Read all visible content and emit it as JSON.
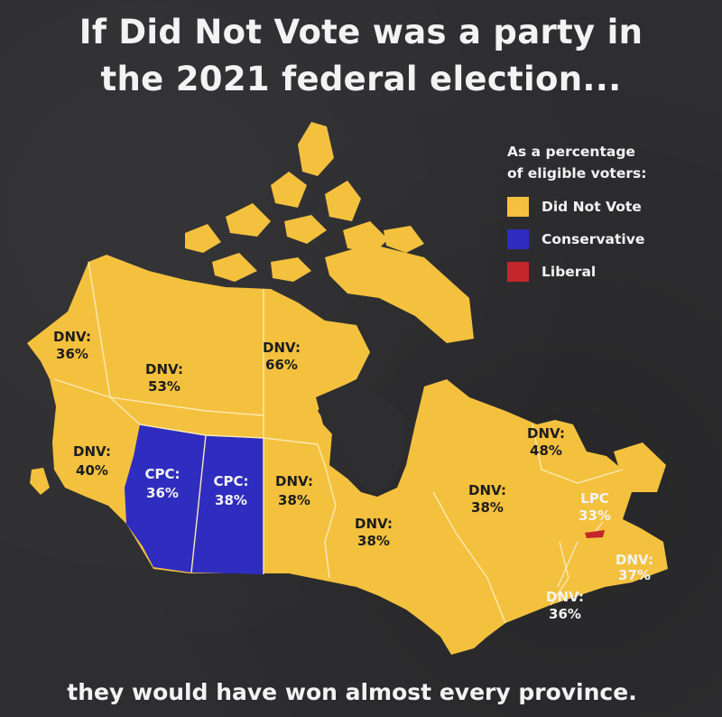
{
  "title_line1": "If Did Not Vote was a party in",
  "title_line2": "the 2021 federal election...",
  "footer": "they would have won almost every province.",
  "legend": {
    "title_line1": "As a percentage",
    "title_line2": "of eligible voters:",
    "items": [
      {
        "label": "Did Not Vote",
        "color": "#f4c13e"
      },
      {
        "label": "Conservative",
        "color": "#2f2dbf"
      },
      {
        "label": "Liberal",
        "color": "#c3272b"
      }
    ]
  },
  "colors": {
    "background": "#2e2e30",
    "land": "#f4c13e",
    "border": "#fbe9b4",
    "cpc": "#2f2dbf",
    "lpc": "#c3272b",
    "label": "#2b2b2b"
  },
  "regions": [
    {
      "name": "Yukon",
      "party": "DNV",
      "line1": "DNV:",
      "line2": "36%"
    },
    {
      "name": "Northwest Territories",
      "party": "DNV",
      "line1": "DNV:",
      "line2": "53%"
    },
    {
      "name": "Nunavut",
      "party": "DNV",
      "line1": "DNV:",
      "line2": "66%"
    },
    {
      "name": "British Columbia",
      "party": "DNV",
      "line1": "DNV:",
      "line2": "40%"
    },
    {
      "name": "Alberta",
      "party": "CPC",
      "line1": "CPC:",
      "line2": "36%"
    },
    {
      "name": "Saskatchewan",
      "party": "CPC",
      "line1": "CPC:",
      "line2": "38%"
    },
    {
      "name": "Manitoba",
      "party": "DNV",
      "line1": "DNV:",
      "line2": "38%"
    },
    {
      "name": "Ontario",
      "party": "DNV",
      "line1": "DNV:",
      "line2": "38%"
    },
    {
      "name": "Quebec",
      "party": "DNV",
      "line1": "DNV:",
      "line2": "38%"
    },
    {
      "name": "Newfoundland and Labrador",
      "party": "DNV",
      "line1": "DNV:",
      "line2": "48%"
    },
    {
      "name": "Prince Edward Island",
      "party": "LPC",
      "line1": "LPC",
      "line2": "33%"
    },
    {
      "name": "Nova Scotia",
      "party": "DNV",
      "line1": "DNV:",
      "line2": "37%"
    },
    {
      "name": "New Brunswick",
      "party": "DNV",
      "line1": "DNV:",
      "line2": "36%"
    }
  ]
}
